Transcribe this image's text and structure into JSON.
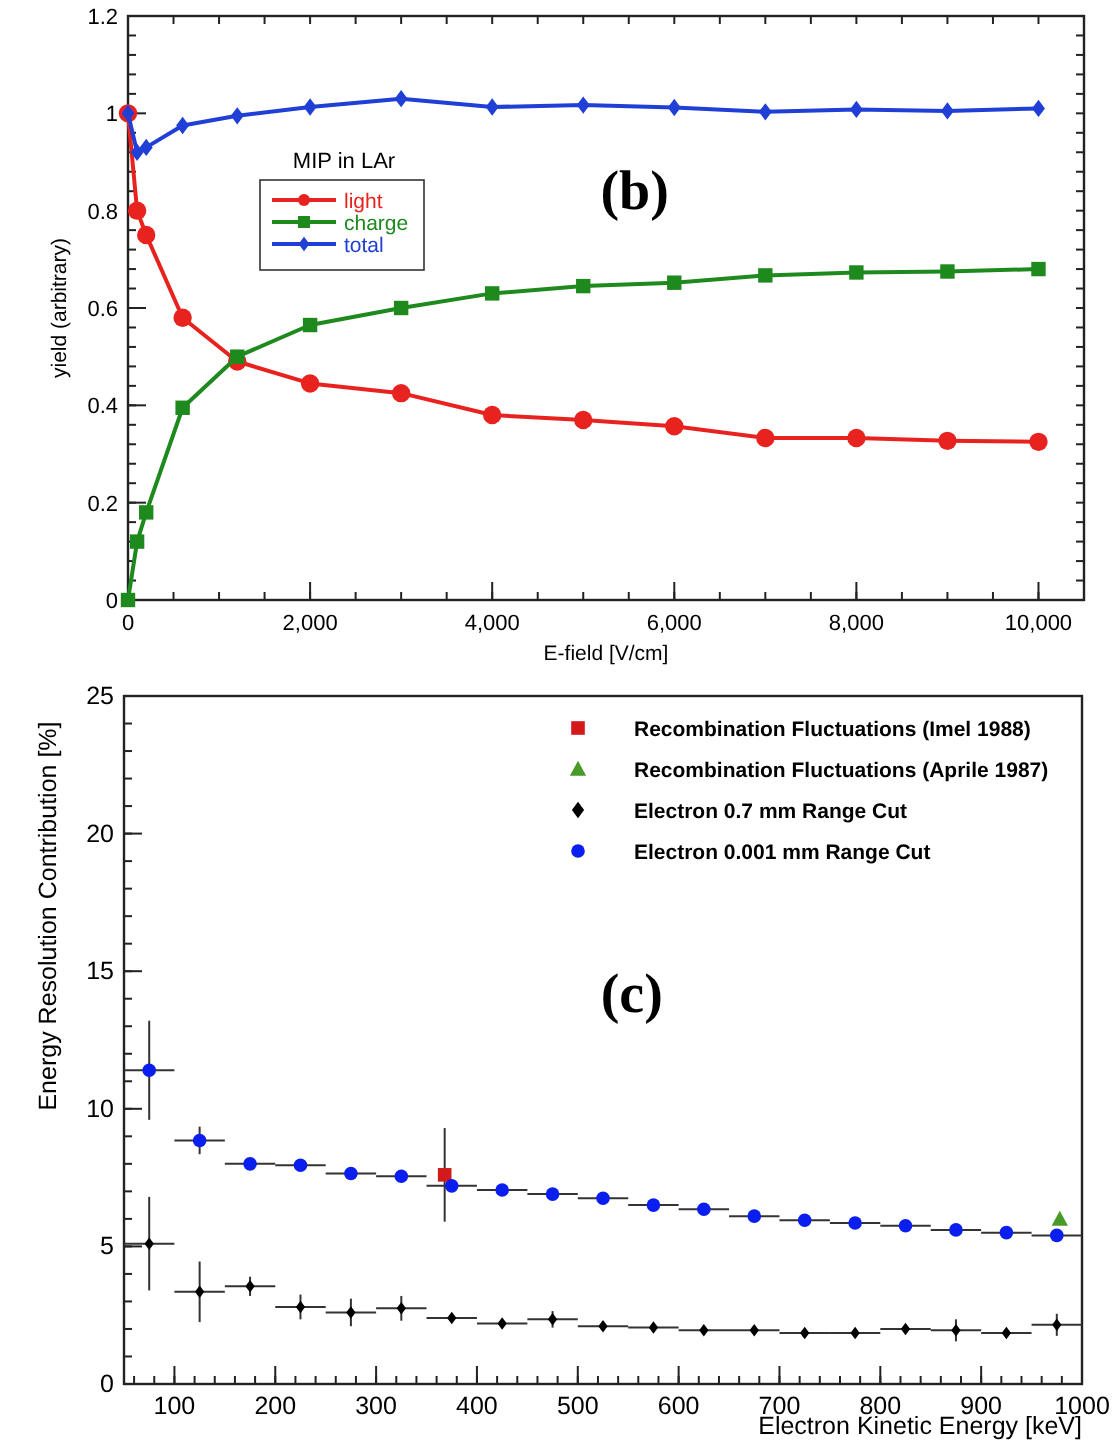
{
  "chart_data": [
    {
      "type": "line",
      "xlabel": "E-field [V/cm]",
      "ylabel": "yield (arbitrary)",
      "legend_title": "MIP in LAr",
      "legend": "top left",
      "annotations": [
        "(b)"
      ],
      "xlim": [
        0,
        10500
      ],
      "xticks": [
        0,
        {
          "value": 2000,
          "label": "2,000"
        },
        {
          "value": 4000,
          "label": "4,000"
        },
        {
          "value": 6000,
          "label": "6,000"
        },
        {
          "value": 8000,
          "label": "8,000"
        },
        {
          "value": 10000,
          "label": "10,000"
        }
      ],
      "ylim": [
        0,
        1.2
      ],
      "yticks": [
        0,
        0.2,
        0.4,
        0.6,
        0.8,
        1,
        1.2
      ],
      "x": [
        0,
        100,
        200,
        600,
        1200,
        2000,
        3000,
        4000,
        5000,
        6000,
        7000,
        8000,
        9000,
        10000
      ],
      "series": [
        {
          "name": "light",
          "color": "#e8231f",
          "marker": "circle",
          "values": [
            1.0,
            0.8,
            0.75,
            0.58,
            0.49,
            0.445,
            0.425,
            0.38,
            0.37,
            0.357,
            0.333,
            0.333,
            0.327,
            0.325
          ]
        },
        {
          "name": "charge",
          "color": "#1e8a1e",
          "marker": "square",
          "values": [
            0,
            0.12,
            0.18,
            0.395,
            0.5,
            0.565,
            0.6,
            0.63,
            0.645,
            0.652,
            0.667,
            0.673,
            0.675,
            0.68
          ]
        },
        {
          "name": "total",
          "color": "#1f3fd6",
          "marker": "diamond",
          "values": [
            1.0,
            0.92,
            0.93,
            0.975,
            0.995,
            1.013,
            1.03,
            1.013,
            1.017,
            1.012,
            1.003,
            1.008,
            1.005,
            1.01
          ]
        }
      ]
    },
    {
      "type": "scatter",
      "xlabel": "Electron Kinetic Energy [keV]",
      "ylabel": "Energy Resolution Contribution [%]",
      "legend": "top right",
      "annotations": [
        "(c)"
      ],
      "xlim": [
        50,
        1000
      ],
      "xticks": [
        100,
        200,
        300,
        400,
        500,
        600,
        700,
        800,
        900,
        1000
      ],
      "ylim": [
        0,
        25
      ],
      "yticks": [
        0,
        5,
        10,
        15,
        20,
        25
      ],
      "series": [
        {
          "name": "Recombination Fluctuations (Imel 1988)",
          "color": "#d21a1a",
          "marker": "square",
          "x": [
            368
          ],
          "values": [
            7.6
          ],
          "errors": [
            1.7
          ]
        },
        {
          "name": "Recombination Fluctuations (Aprile 1987)",
          "color": "#4a9a2a",
          "marker": "triangle",
          "x": [
            978
          ],
          "values": [
            6.0
          ]
        },
        {
          "name": "Electron 0.7 mm Range Cut",
          "color": "#000000",
          "marker": "diamond",
          "x": [
            75,
            125,
            175,
            225,
            275,
            325,
            375,
            425,
            475,
            525,
            575,
            625,
            675,
            725,
            775,
            825,
            875,
            925,
            975
          ],
          "values": [
            5.1,
            3.35,
            3.55,
            2.8,
            2.6,
            2.75,
            2.4,
            2.2,
            2.35,
            2.1,
            2.05,
            1.95,
            1.95,
            1.85,
            1.85,
            2.0,
            1.95,
            1.85,
            2.15
          ],
          "errors": [
            1.7,
            1.1,
            0.35,
            0.45,
            0.5,
            0.45,
            null,
            null,
            0.3,
            null,
            null,
            null,
            null,
            null,
            null,
            null,
            0.4,
            null,
            0.4
          ],
          "xerrors": [
            25,
            25,
            25,
            25,
            25,
            25,
            25,
            25,
            25,
            25,
            25,
            25,
            25,
            25,
            25,
            25,
            25,
            25,
            25
          ]
        },
        {
          "name": "Electron 0.001 mm Range Cut",
          "color": "#0a1ef0",
          "marker": "circle",
          "x": [
            75,
            125,
            175,
            225,
            275,
            325,
            375,
            425,
            475,
            525,
            575,
            625,
            675,
            725,
            775,
            825,
            875,
            925,
            975
          ],
          "values": [
            11.4,
            8.85,
            8.0,
            7.95,
            7.65,
            7.55,
            7.2,
            7.05,
            6.9,
            6.75,
            6.5,
            6.35,
            6.1,
            5.95,
            5.85,
            5.75,
            5.6,
            5.5,
            5.4
          ],
          "errors": [
            1.8,
            0.5,
            null,
            null,
            null,
            null,
            null,
            null,
            null,
            null,
            null,
            null,
            null,
            null,
            null,
            null,
            null,
            null,
            null
          ],
          "xerrors": [
            25,
            25,
            25,
            25,
            25,
            25,
            25,
            25,
            25,
            25,
            25,
            25,
            25,
            25,
            25,
            25,
            25,
            25,
            25
          ]
        }
      ]
    }
  ]
}
